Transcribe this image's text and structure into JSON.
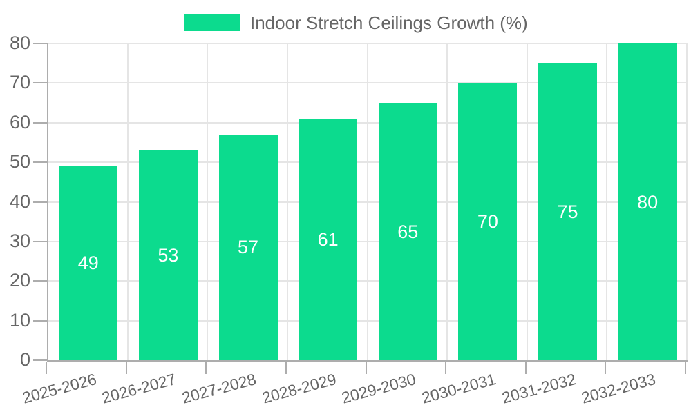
{
  "legend": {
    "label": "Indoor Stretch Ceilings Growth (%)",
    "swatch_color": "#0cdb8e"
  },
  "chart_data": {
    "type": "bar",
    "title": "Indoor Stretch Ceilings Growth (%)",
    "categories": [
      "2025-2026",
      "2026-2027",
      "2027-2028",
      "2028-2029",
      "2029-2030",
      "2030-2031",
      "2031-2032",
      "2032-2033"
    ],
    "series": [
      {
        "name": "Indoor Stretch Ceilings Growth (%)",
        "values": [
          49,
          53,
          57,
          61,
          65,
          70,
          75,
          80
        ]
      }
    ],
    "value_labels": [
      "49",
      "53",
      "57",
      "61",
      "65",
      "70",
      "75",
      "80"
    ],
    "xlabel": "",
    "ylabel": "",
    "ylim": [
      0,
      80
    ],
    "yticks": [
      0,
      10,
      20,
      30,
      40,
      50,
      60,
      70,
      80
    ],
    "grid": true,
    "legend_position": "top",
    "colors": {
      "bar": "#0cdb8e",
      "value_label": "#ffffff",
      "axis_line": "#adadad",
      "gridline": "#e5e5e5",
      "tick_text": "#666666",
      "background": "#ffffff"
    }
  }
}
